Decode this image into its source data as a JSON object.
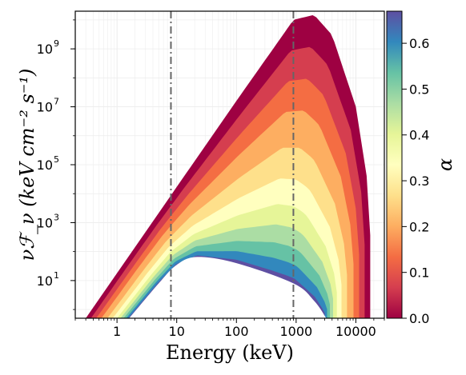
{
  "chart_data": {
    "type": "area",
    "x_scale": "log",
    "y_scale": "log",
    "xlim": [
      0.2,
      30000
    ],
    "ylim": [
      0.5,
      20000000000
    ],
    "xlabel": "Energy (keV)",
    "ylabel": "νℱ_ν (keV cm⁻² s⁻¹)",
    "x_ticks": [
      {
        "value": 1,
        "label": "1"
      },
      {
        "value": 10,
        "label": "10"
      },
      {
        "value": 100,
        "label": "100"
      },
      {
        "value": 1000,
        "label": "1000"
      },
      {
        "value": 10000,
        "label": "10000"
      }
    ],
    "y_ticks": [
      {
        "value": 10,
        "base": "10",
        "exp": "1"
      },
      {
        "value": 1000,
        "base": "10",
        "exp": "3"
      },
      {
        "value": 100000,
        "base": "10",
        "exp": "5"
      },
      {
        "value": 10000000,
        "base": "10",
        "exp": "7"
      },
      {
        "value": 1000000000,
        "base": "10",
        "exp": "9"
      }
    ],
    "vertical_lines": [
      8,
      900
    ],
    "colorbar": {
      "label": "α",
      "colormap": "Spectral",
      "range": [
        0.0,
        0.67
      ],
      "ticks": [
        "0.0",
        "0.1",
        "0.2",
        "0.3",
        "0.4",
        "0.5",
        "0.6"
      ]
    },
    "envelope": {
      "upper_edge": [
        {
          "x": 0.3,
          "y": 0.5
        },
        {
          "x": 1,
          "y": 18
        },
        {
          "x": 10,
          "y": 17000
        },
        {
          "x": 100,
          "y": 16000000
        },
        {
          "x": 900,
          "y": 10000000000
        },
        {
          "x": 2000,
          "y": 15000000000
        },
        {
          "x": 4000,
          "y": 3000000000
        },
        {
          "x": 10000,
          "y": 10000000
        },
        {
          "x": 16000,
          "y": 20000
        },
        {
          "x": 20000,
          "y": 0.5
        }
      ],
      "lower_edge_alpha_max": [
        {
          "x": 1.6,
          "y": 0.5
        },
        {
          "x": 5,
          "y": 8
        },
        {
          "x": 10,
          "y": 35
        },
        {
          "x": 22,
          "y": 65
        },
        {
          "x": 100,
          "y": 40
        },
        {
          "x": 900,
          "y": 8
        },
        {
          "x": 2000,
          "y": 2
        },
        {
          "x": 3200,
          "y": 0.5
        }
      ],
      "yellow_peak": {
        "x": 170,
        "y": 700000
      }
    }
  }
}
